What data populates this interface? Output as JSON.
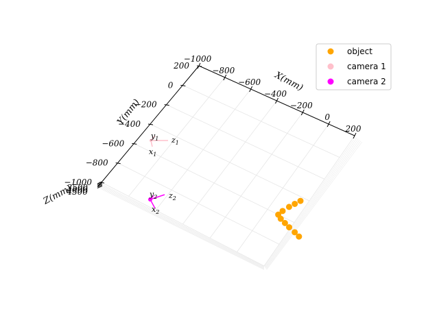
{
  "chart_data": {
    "type": "scatter",
    "projection": "3d",
    "axes": {
      "x": {
        "label": "X(mm)",
        "ticks": [
          -1000,
          -800,
          -600,
          -400,
          -200,
          0,
          200
        ],
        "tick_labels": [
          "−1000",
          "−800",
          "−600",
          "−400",
          "−200",
          "0",
          "200"
        ]
      },
      "y": {
        "label": "Y(mm)",
        "ticks": [
          200,
          0,
          -200,
          -400,
          -600,
          -800,
          -1000
        ],
        "tick_labels": [
          "200",
          "0",
          "−200",
          "−400",
          "−600",
          "−800",
          "−1000"
        ]
      },
      "z": {
        "label": "Z(mm)",
        "tick_labels": [
          "3500",
          "4000",
          "4500"
        ]
      }
    },
    "grid": true,
    "legend": {
      "placement": "top-right",
      "entries": [
        {
          "label": "object",
          "color": "#ffa500"
        },
        {
          "label": "camera 1",
          "color": "#ffc0cb"
        },
        {
          "label": "camera 2",
          "color": "#ff00ff"
        }
      ]
    },
    "series": [
      {
        "name": "object",
        "color": "#ffa500",
        "points": [
          {
            "x": 150,
            "y": -430
          },
          {
            "x": 130,
            "y": -470
          },
          {
            "x": 110,
            "y": -510
          },
          {
            "x": 90,
            "y": -560
          },
          {
            "x": 80,
            "y": -600
          },
          {
            "x": 110,
            "y": -620
          },
          {
            "x": 150,
            "y": -635
          },
          {
            "x": 190,
            "y": -650
          },
          {
            "x": 240,
            "y": -665
          },
          {
            "x": 280,
            "y": -680
          }
        ]
      }
    ],
    "cameras": [
      {
        "name": "camera 1",
        "color": "#ffc0cb",
        "label_x": "x",
        "label_y": "y",
        "label_z": "z",
        "index": "1"
      },
      {
        "name": "camera 2",
        "color": "#ff00ff",
        "label_x": "x",
        "label_y": "y",
        "label_z": "z",
        "index": "2"
      }
    ]
  }
}
